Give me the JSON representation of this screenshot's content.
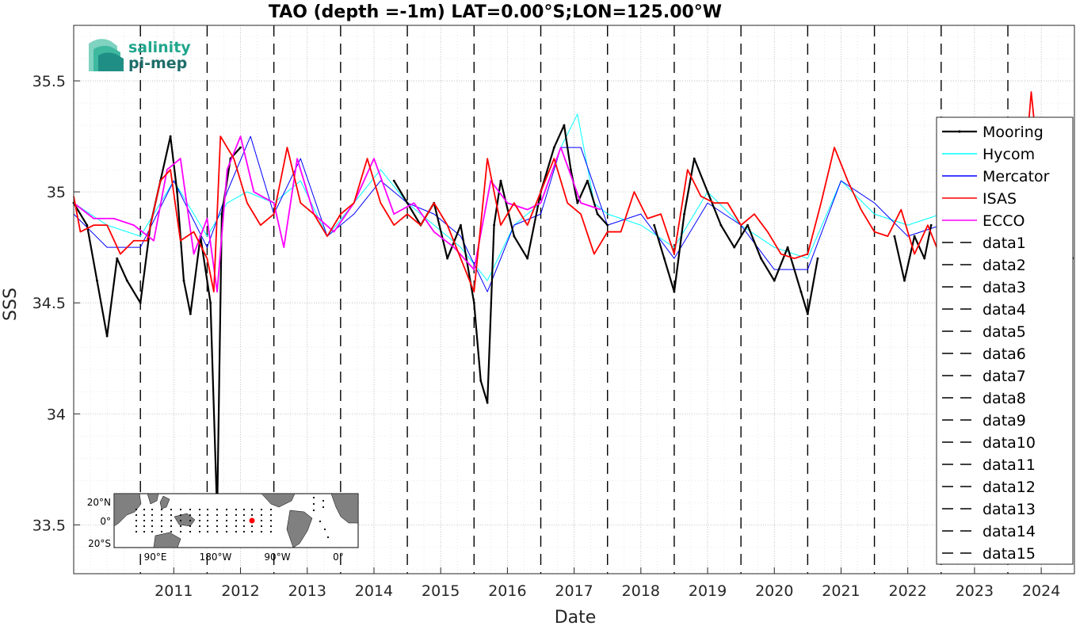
{
  "chart_data": {
    "type": "line",
    "title": "TAO (depth =-1m) LAT=0.00°S;LON=125.00°W",
    "xlabel": "Date",
    "ylabel": "SSS",
    "xlim": [
      "2010-01-01",
      "2024-12-31"
    ],
    "ylim": [
      33.28,
      35.75
    ],
    "x_ticks": [
      "2011",
      "2012",
      "2013",
      "2014",
      "2015",
      "2016",
      "2017",
      "2018",
      "2019",
      "2020",
      "2021",
      "2022",
      "2023",
      "2024"
    ],
    "y_ticks": [
      "33.5",
      "34",
      "34.5",
      "35",
      "35.5"
    ],
    "grid": true,
    "minor_grid": true,
    "legend_position": "right",
    "year_markers": [
      "2011-01-01",
      "2012-01-01",
      "2013-01-01",
      "2014-01-01",
      "2015-01-01",
      "2016-01-01",
      "2017-01-01",
      "2018-01-01",
      "2019-01-01",
      "2020-01-01",
      "2021-01-01",
      "2022-01-01",
      "2023-01-01",
      "2024-01-01"
    ],
    "series": [
      {
        "name": "Mooring",
        "color": "#000000",
        "style": "solid-dots",
        "x": [
          2010.0,
          2010.2,
          2010.35,
          2010.5,
          2010.65,
          2010.8,
          2011.0,
          2011.15,
          2011.3,
          2011.45,
          2011.55,
          2011.65,
          2011.75,
          2011.9,
          2012.05,
          2012.15,
          2012.22,
          2012.35,
          2012.5
        ],
        "y": [
          34.95,
          34.85,
          34.6,
          34.35,
          34.7,
          34.6,
          34.5,
          34.85,
          35.05,
          35.25,
          35.0,
          34.6,
          34.45,
          34.8,
          34.5,
          33.55,
          34.9,
          35.15,
          35.2
        ]
      },
      {
        "name": "Mooring",
        "color": "#000000",
        "style": "solid-dots",
        "x": [
          2014.8,
          2015.0,
          2015.2,
          2015.4,
          2015.6,
          2015.8,
          2016.0,
          2016.1,
          2016.2,
          2016.3,
          2016.4,
          2016.6,
          2016.8,
          2017.0,
          2017.2,
          2017.35,
          2017.45,
          2017.55,
          2017.7,
          2017.85,
          2018.0
        ],
        "y": [
          35.05,
          34.95,
          34.85,
          34.95,
          34.7,
          34.85,
          34.5,
          34.15,
          34.05,
          34.85,
          35.05,
          34.8,
          34.7,
          35.0,
          35.2,
          35.3,
          35.1,
          34.95,
          35.05,
          34.9,
          34.85
        ]
      },
      {
        "name": "Mooring",
        "color": "#000000",
        "style": "solid-dots",
        "x": [
          2018.7,
          2018.85,
          2019.0,
          2019.15,
          2019.3,
          2019.5,
          2019.7,
          2019.9,
          2020.1,
          2020.3,
          2020.5,
          2020.7,
          2020.9,
          2021.0,
          2021.15
        ],
        "y": [
          34.85,
          34.7,
          34.55,
          34.9,
          35.15,
          35.0,
          34.85,
          34.75,
          34.85,
          34.7,
          34.6,
          34.75,
          34.55,
          34.45,
          34.7
        ]
      },
      {
        "name": "Mooring",
        "color": "#000000",
        "style": "solid-dots",
        "x": [
          2022.3,
          2022.45,
          2022.6,
          2022.75,
          2022.85
        ],
        "y": [
          34.8,
          34.6,
          34.8,
          34.7,
          34.85
        ]
      },
      {
        "name": "Mooring",
        "color": "#000000",
        "style": "solid-dots",
        "x": [
          2024.7,
          2024.8,
          2024.9,
          2024.97
        ],
        "y": [
          34.85,
          34.75,
          34.95,
          34.7
        ]
      },
      {
        "name": "Hycom",
        "color": "#00ffff",
        "style": "solid",
        "x": [
          2010.0,
          2010.5,
          2011.0,
          2011.5,
          2012.0,
          2012.3,
          2012.6,
          2013.0,
          2013.4,
          2013.8,
          2014.2,
          2014.6,
          2015.0,
          2015.4,
          2015.8,
          2016.2,
          2016.6,
          2017.0,
          2017.3,
          2017.55,
          2017.8,
          2018.0,
          2018.5,
          2019.0,
          2019.5,
          2020.0,
          2020.5,
          2021.0,
          2021.5,
          2022.0,
          2022.5,
          2023.0
        ],
        "y": [
          34.95,
          34.85,
          34.8,
          35.05,
          34.8,
          34.95,
          35.0,
          34.95,
          35.05,
          34.8,
          34.95,
          35.1,
          34.95,
          34.85,
          34.75,
          34.6,
          34.85,
          34.95,
          35.2,
          35.35,
          34.95,
          34.9,
          34.85,
          34.75,
          35.0,
          34.85,
          34.75,
          34.7,
          35.05,
          34.9,
          34.85,
          34.9
        ]
      },
      {
        "name": "Mercator",
        "color": "#0000ff",
        "style": "solid",
        "x": [
          2010.0,
          2010.5,
          2011.0,
          2011.5,
          2012.0,
          2012.3,
          2012.65,
          2013.0,
          2013.4,
          2013.8,
          2014.2,
          2014.6,
          2015.0,
          2015.4,
          2015.8,
          2016.2,
          2016.6,
          2017.0,
          2017.3,
          2017.6,
          2018.0,
          2018.5,
          2019.0,
          2019.5,
          2020.0,
          2020.5,
          2021.0,
          2021.5,
          2022.0,
          2022.5,
          2023.0,
          2023.5,
          2024.0,
          2024.5,
          2024.97
        ],
        "y": [
          34.9,
          34.75,
          34.75,
          35.05,
          34.75,
          35.0,
          35.25,
          34.9,
          35.15,
          34.8,
          34.9,
          35.05,
          34.95,
          34.9,
          34.8,
          34.55,
          34.85,
          34.9,
          35.2,
          35.2,
          34.85,
          34.9,
          34.7,
          34.95,
          34.85,
          34.65,
          34.65,
          35.05,
          34.95,
          34.8,
          34.85,
          34.95,
          35.0,
          34.95,
          34.85
        ]
      },
      {
        "name": "ISAS",
        "color": "#ff0000",
        "style": "solid",
        "x": [
          2010.0,
          2010.1,
          2010.3,
          2010.5,
          2010.7,
          2010.9,
          2011.1,
          2011.3,
          2011.45,
          2011.6,
          2011.8,
          2012.0,
          2012.1,
          2012.2,
          2012.4,
          2012.6,
          2012.8,
          2013.0,
          2013.2,
          2013.4,
          2013.6,
          2013.8,
          2014.0,
          2014.2,
          2014.4,
          2014.6,
          2014.8,
          2015.0,
          2015.2,
          2015.4,
          2015.6,
          2015.8,
          2016.0,
          2016.2,
          2016.4,
          2016.6,
          2016.8,
          2017.0,
          2017.2,
          2017.4,
          2017.6,
          2017.8,
          2018.0,
          2018.2,
          2018.4,
          2018.6,
          2018.8,
          2019.0,
          2019.2,
          2019.4,
          2019.6,
          2019.8,
          2020.0,
          2020.2,
          2020.4,
          2020.6,
          2020.8,
          2021.0,
          2021.2,
          2021.4,
          2021.6,
          2021.8,
          2022.0,
          2022.2,
          2022.4,
          2022.6,
          2022.8,
          2023.0,
          2023.2,
          2023.4,
          2023.6,
          2023.8,
          2024.0,
          2024.2,
          2024.35,
          2024.5
        ],
        "y": [
          34.98,
          34.82,
          34.85,
          34.85,
          34.72,
          34.78,
          34.78,
          35.05,
          35.1,
          34.78,
          34.82,
          34.7,
          34.55,
          35.25,
          35.15,
          34.95,
          34.85,
          34.9,
          35.2,
          34.95,
          34.9,
          34.8,
          34.9,
          34.95,
          35.15,
          34.95,
          34.85,
          34.9,
          34.85,
          34.95,
          34.85,
          34.7,
          34.55,
          35.15,
          34.85,
          34.95,
          34.85,
          35.0,
          35.15,
          34.95,
          34.9,
          34.72,
          34.82,
          34.82,
          35.0,
          34.88,
          34.9,
          34.72,
          35.1,
          34.98,
          34.95,
          34.95,
          34.85,
          34.9,
          34.82,
          34.72,
          34.7,
          34.72,
          34.95,
          35.2,
          35.05,
          34.92,
          34.82,
          34.8,
          34.92,
          34.72,
          34.85,
          34.7,
          34.85,
          34.9,
          34.95,
          34.82,
          34.85,
          34.9,
          35.45,
          35.0
        ]
      },
      {
        "name": "ECCO",
        "color": "#ff00ff",
        "style": "solid",
        "x": [
          2010.0,
          2010.3,
          2010.6,
          2010.9,
          2011.2,
          2011.4,
          2011.6,
          2011.8,
          2012.0,
          2012.15,
          2012.3,
          2012.5,
          2012.7,
          2013.0,
          2013.15,
          2013.35,
          2013.6,
          2013.9,
          2014.2,
          2014.5,
          2014.8,
          2015.1,
          2015.4,
          2015.7,
          2016.0,
          2016.25,
          2016.5,
          2016.8,
          2017.0,
          2017.3,
          2017.6,
          2017.9
        ],
        "y": [
          34.95,
          34.88,
          34.88,
          34.85,
          34.78,
          35.1,
          35.15,
          34.72,
          34.88,
          34.55,
          35.1,
          35.25,
          35.0,
          34.95,
          34.75,
          35.15,
          34.9,
          34.82,
          34.95,
          35.15,
          34.9,
          34.95,
          34.82,
          34.75,
          34.65,
          35.05,
          34.95,
          34.92,
          34.95,
          35.2,
          34.95,
          34.92
        ]
      },
      {
        "name": "data1",
        "color": "#000000",
        "style": "dashed"
      },
      {
        "name": "data2",
        "color": "#000000",
        "style": "dashed"
      },
      {
        "name": "data3",
        "color": "#000000",
        "style": "dashed"
      },
      {
        "name": "data4",
        "color": "#000000",
        "style": "dashed"
      },
      {
        "name": "data5",
        "color": "#000000",
        "style": "dashed"
      },
      {
        "name": "data6",
        "color": "#000000",
        "style": "dashed"
      },
      {
        "name": "data7",
        "color": "#000000",
        "style": "dashed"
      },
      {
        "name": "data8",
        "color": "#000000",
        "style": "dashed"
      },
      {
        "name": "data9",
        "color": "#000000",
        "style": "dashed"
      },
      {
        "name": "data10",
        "color": "#000000",
        "style": "dashed"
      },
      {
        "name": "data11",
        "color": "#000000",
        "style": "dashed"
      },
      {
        "name": "data12",
        "color": "#000000",
        "style": "dashed"
      },
      {
        "name": "data13",
        "color": "#000000",
        "style": "dashed"
      },
      {
        "name": "data14",
        "color": "#000000",
        "style": "dashed"
      },
      {
        "name": "data15",
        "color": "#000000",
        "style": "dashed"
      }
    ],
    "legend": [
      "Mooring",
      "Hycom",
      "Mercator",
      "ISAS",
      "ECCO",
      "data1",
      "data2",
      "data3",
      "data4",
      "data5",
      "data6",
      "data7",
      "data8",
      "data9",
      "data10",
      "data11",
      "data12",
      "data13",
      "data14",
      "data15"
    ]
  },
  "logo": {
    "line1": "salinity",
    "line2": "pi-mep"
  },
  "inset_map": {
    "lat_labels": [
      "20°N",
      "0°",
      "20°S"
    ],
    "lon_labels": [
      "90°E",
      "180°W",
      "90°W",
      "0°"
    ],
    "colors": {
      "ocean": "#ffffff",
      "land": "#808080",
      "station": "#000000",
      "selected": "#ff0000"
    }
  }
}
